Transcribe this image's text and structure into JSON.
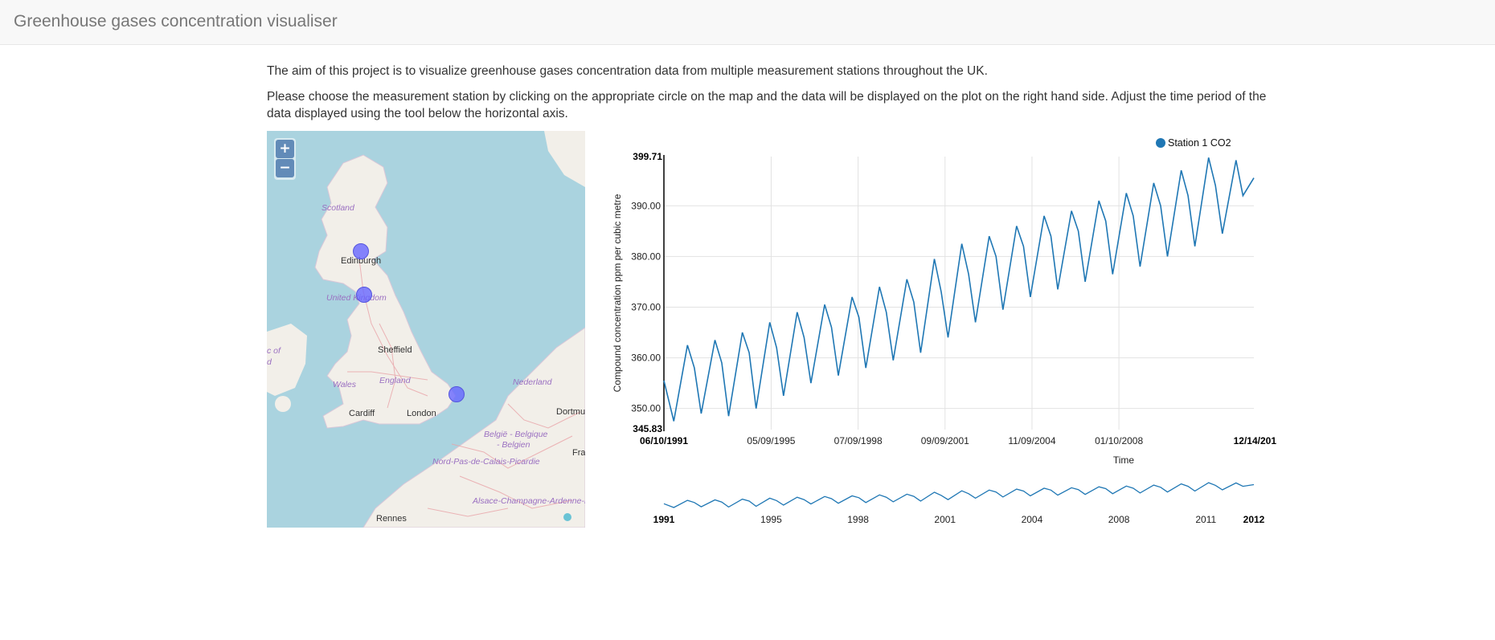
{
  "header": {
    "title": "Greenhouse gases concentration visualiser"
  },
  "intro": {
    "p1": "The aim of this project is to visualize greenhouse gases concentration data from multiple measurement stations throughout the UK.",
    "p2": "Please choose the measurement station by clicking on the appropriate circle on the map and the data will be displayed on the plot on the right hand side. Adjust the time period of the data displayed using the tool below the horizontal axis."
  },
  "map": {
    "zoom_in": "+",
    "zoom_out": "−",
    "labels": {
      "scotland": "Scotland",
      "edinburgh": "Edinburgh",
      "united_kingdom": "United Kingdom",
      "sheffield": "Sheffield",
      "wales": "Wales",
      "england": "England",
      "cardiff": "Cardiff",
      "london": "London",
      "nederland": "Nederland",
      "dortmund": "Dortmu",
      "belgie": "België - Belgique",
      "belgien": "- Belgien",
      "nord": "Nord-Pas-de-Calais-Picardie",
      "fra": "Fra",
      "alsace": "Alsace-Champagne-Ardenne-Lo",
      "rennes": "Rennes",
      "cof": "c of",
      "d": "d"
    },
    "colors": {
      "sea": "#aad3df",
      "land": "#f2efe9",
      "station": "#6666ff"
    }
  },
  "chart_data": {
    "type": "line",
    "title": "",
    "xlabel": "Time",
    "ylabel": "Compound concentration ppm per cubic metre",
    "legend": [
      "Station 1 CO2"
    ],
    "legend_position": "top-right",
    "color": "#1f77b4",
    "ylim": [
      345.83,
      399.71
    ],
    "y_min_label": "345.83",
    "y_max_label": "399.71",
    "y_ticks": [
      "350.00",
      "360.00",
      "370.00",
      "380.00",
      "390.00"
    ],
    "y_tick_values": [
      350,
      360,
      370,
      380,
      390
    ],
    "x_start_label": "06/10/1991",
    "x_end_label": "12/14/201",
    "x_tick_labels": [
      "05/09/1995",
      "07/09/1998",
      "09/09/2001",
      "11/09/2004",
      "01/10/2008"
    ],
    "x_tick_years": [
      1995.35,
      1998.52,
      2001.69,
      2004.86,
      2008.03
    ],
    "xlim_years": [
      1991.44,
      2012.95
    ],
    "grid": true,
    "series": [
      {
        "name": "Station 1 CO2",
        "x_years": [
          1991.44,
          1991.8,
          1992.3,
          1992.55,
          1992.8,
          1993.3,
          1993.55,
          1993.8,
          1994.3,
          1994.55,
          1994.8,
          1995.3,
          1995.55,
          1995.8,
          1996.3,
          1996.55,
          1996.8,
          1997.3,
          1997.55,
          1997.8,
          1998.3,
          1998.55,
          1998.8,
          1999.3,
          1999.55,
          1999.8,
          2000.3,
          2000.55,
          2000.8,
          2001.3,
          2001.55,
          2001.8,
          2002.3,
          2002.55,
          2002.8,
          2003.3,
          2003.55,
          2003.8,
          2004.3,
          2004.55,
          2004.8,
          2005.3,
          2005.55,
          2005.8,
          2006.3,
          2006.55,
          2006.8,
          2007.3,
          2007.55,
          2007.8,
          2008.3,
          2008.55,
          2008.8,
          2009.3,
          2009.55,
          2009.8,
          2010.3,
          2010.55,
          2010.8,
          2011.3,
          2011.55,
          2011.8,
          2012.3,
          2012.55,
          2012.95
        ],
        "values": [
          355.5,
          347.5,
          362.5,
          358.0,
          349.0,
          363.5,
          359.0,
          348.5,
          365.0,
          361.0,
          350.0,
          367.0,
          362.0,
          352.5,
          369.0,
          364.0,
          355.0,
          370.5,
          366.0,
          356.5,
          372.0,
          368.0,
          358.0,
          374.0,
          369.0,
          359.5,
          375.5,
          371.0,
          361.0,
          379.5,
          373.0,
          364.0,
          382.5,
          376.5,
          367.0,
          384.0,
          380.0,
          369.5,
          386.0,
          382.0,
          372.0,
          388.0,
          384.0,
          373.5,
          389.0,
          385.0,
          375.0,
          391.0,
          387.0,
          376.5,
          392.5,
          388.0,
          378.0,
          394.5,
          390.0,
          380.0,
          397.0,
          392.0,
          382.0,
          399.5,
          394.0,
          384.5,
          399.0,
          392.0,
          395.5
        ]
      }
    ],
    "navigator": {
      "tick_labels": [
        "1991",
        "1995",
        "1998",
        "2001",
        "2004",
        "2008",
        "2011",
        "2012"
      ],
      "tick_years": [
        1991.44,
        1995.35,
        1998.52,
        2001.69,
        2004.86,
        2008.03,
        2011.2,
        2012.95
      ]
    }
  }
}
